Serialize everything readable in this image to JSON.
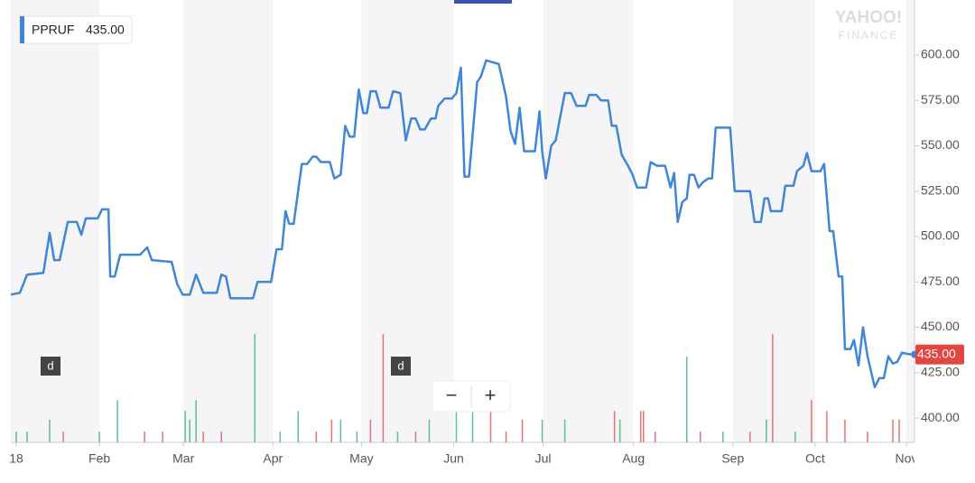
{
  "chart_data": {
    "type": "line",
    "symbol": "PPRUF",
    "last_price": {
      "value": 435,
      "label": "435.00"
    },
    "watermark": [
      "YAHOO!",
      "FINANCE"
    ],
    "buttons": [
      "d",
      "d",
      "−",
      "+"
    ],
    "xlim": [
      0,
      200
    ],
    "xticks": [
      {
        "value": 1.2,
        "label": "18"
      },
      {
        "value": 19.6,
        "label": "Feb"
      },
      {
        "value": 38.2,
        "label": "Mar"
      },
      {
        "value": 58,
        "label": "Apr"
      },
      {
        "value": 77.6,
        "label": "May"
      },
      {
        "value": 98,
        "label": "Jun"
      },
      {
        "value": 117.8,
        "label": "Jul"
      },
      {
        "value": 137.8,
        "label": "Aug"
      },
      {
        "value": 159.8,
        "label": "Sep"
      },
      {
        "value": 178,
        "label": "Oct"
      },
      {
        "value": 198.2,
        "label": "Nov"
      }
    ],
    "ylim": [
      386.6,
      630.3
    ],
    "yticks": [
      {
        "value": 400,
        "label": "400.00"
      },
      {
        "value": 425,
        "label": "425.00"
      },
      {
        "value": 450,
        "label": "450.00"
      },
      {
        "value": 475,
        "label": "475.00"
      },
      {
        "value": 500,
        "label": "500.00"
      },
      {
        "value": 525,
        "label": "525.00"
      },
      {
        "value": 550,
        "label": "550.00"
      },
      {
        "value": 575,
        "label": "575.00"
      },
      {
        "value": 600,
        "label": "600.00"
      }
    ],
    "series": [
      {
        "name": "PPRUF",
        "color": "#3f86d6",
        "x": [
          0,
          2,
          3.6,
          7.2,
          8.6,
          9.6,
          10.8,
          12.6,
          14.6,
          15.6,
          16.6,
          19.2,
          20.2,
          21.6,
          22,
          23,
          24.2,
          28.6,
          30.2,
          31.2,
          35.6,
          36.8,
          38,
          39.6,
          41,
          42.6,
          45.6,
          46.6,
          47.6,
          48.6,
          53.6,
          54.6,
          57.6,
          58.8,
          60,
          60.8,
          61.6,
          62.6,
          64.4,
          65.6,
          66.8,
          67.6,
          68.6,
          70.6,
          71.6,
          73,
          74,
          75,
          76,
          77,
          78,
          78.8,
          79.6,
          80.8,
          81.8,
          83.6,
          84.6,
          86.2,
          87.4,
          88.6,
          89.6,
          90.6,
          91.6,
          93,
          94,
          94.6,
          96,
          97.6,
          98.6,
          99.6,
          100.4,
          101.4,
          103.2,
          104,
          105.2,
          106.6,
          108,
          109.6,
          110.6,
          111.6,
          112.6,
          113.6,
          116,
          117,
          117.6,
          118.4,
          119.6,
          120.6,
          121.6,
          122.6,
          124,
          125.2,
          127.2,
          128,
          129.6,
          130.6,
          132.2,
          133,
          134,
          135.2,
          136.6,
          137.6,
          138.6,
          140.6,
          141.6,
          143,
          144.8,
          146,
          146.8,
          147.6,
          148.6,
          149.6,
          150.2,
          151.2,
          152.2,
          153.2,
          154.4,
          155.2,
          156,
          159.2,
          160.2,
          163.6,
          164.6,
          166,
          166.8,
          167.6,
          168.2,
          170.6,
          171.4,
          173.2,
          174,
          175.4,
          176.2,
          177.2,
          179.2,
          180,
          181.2,
          182,
          183.2,
          184,
          184.6,
          185.8,
          186.6,
          187.6,
          188.6,
          189.6,
          191.2,
          192.2,
          193.2,
          194.2,
          195.2,
          196.2,
          197.2,
          199.2,
          200
        ],
        "values": [
          468,
          469,
          479,
          480,
          502,
          487,
          487,
          508,
          508,
          501,
          510,
          510,
          515,
          515,
          478,
          478,
          490,
          490,
          494,
          487,
          486,
          474,
          468,
          468,
          479,
          469,
          469,
          479,
          478,
          466,
          466,
          475,
          475,
          493,
          493,
          514,
          507,
          507,
          540,
          540,
          544,
          544,
          541,
          541,
          532,
          534,
          561,
          555,
          555,
          581,
          568,
          568,
          580,
          580,
          571,
          571,
          580,
          579,
          553,
          565,
          565,
          559,
          559,
          565,
          565,
          572,
          576,
          576,
          579,
          593,
          533,
          533,
          585,
          588,
          597,
          596,
          595,
          577,
          558,
          551,
          571,
          547,
          547,
          569,
          547,
          532,
          550,
          553,
          566,
          579,
          579,
          572,
          572,
          578,
          578,
          575,
          575,
          561,
          561,
          545,
          539,
          534,
          527,
          527,
          541,
          539,
          539,
          527,
          535,
          508,
          519,
          521,
          534,
          534,
          527,
          530,
          532,
          532,
          560,
          560,
          525,
          525,
          508,
          508,
          521,
          521,
          514,
          514,
          528,
          528,
          536,
          539,
          546,
          536,
          536,
          540,
          503,
          503,
          478,
          478,
          438,
          438,
          443,
          429,
          450,
          434,
          417,
          422,
          422,
          434,
          430,
          431,
          436,
          435,
          435
        ]
      }
    ],
    "volume": {
      "lim": [
        0,
        100
      ],
      "x": [
        1.2,
        3.6,
        8.6,
        11.6,
        19.6,
        23.6,
        29.6,
        33.6,
        38.6,
        39.6,
        41,
        42.6,
        46.6,
        54,
        59.6,
        63.6,
        67.6,
        71,
        73,
        76.6,
        79.6,
        82.4,
        85.6,
        89.6,
        92.6,
        98.6,
        102.2,
        106.2,
        109.6,
        113.2,
        117.6,
        122.6,
        133.6,
        134.8,
        139.4,
        140,
        142.6,
        149.6,
        152.6,
        157.6,
        163.6,
        167.2,
        168.6,
        173.6,
        177.2,
        180.6,
        184.6,
        189.6,
        195.2,
        196.6
      ],
      "values": [
        10,
        10,
        21,
        10,
        10,
        39,
        10,
        10,
        29,
        21,
        39,
        10,
        10,
        100,
        10,
        29,
        10,
        21,
        21,
        10,
        21,
        100,
        10,
        10,
        21,
        29,
        50,
        38,
        10,
        21,
        21,
        21,
        29,
        21,
        29,
        29,
        10,
        79,
        10,
        10,
        10,
        21,
        100,
        10,
        39,
        29,
        21,
        10,
        21,
        21
      ],
      "colors": [
        "#5fbf8f",
        "#5fbf8f",
        "#5fbf8f",
        "#e57373",
        "#5fbf8f",
        "#5fbf8f",
        "#e57373",
        "#e57373",
        "#5fbf8f",
        "#5fbf8f",
        "#5fbf8f",
        "#e57373",
        "#e57373",
        "#5fbf8f",
        "#5fbf8f",
        "#5fbf8f",
        "#e57373",
        "#e57373",
        "#5fbf8f",
        "#5fbf8f",
        "#e57373",
        "#e57373",
        "#5fbf8f",
        "#e57373",
        "#5fbf8f",
        "#5fbf8f",
        "#5fbf8f",
        "#e57373",
        "#e57373",
        "#e57373",
        "#5fbf8f",
        "#5fbf8f",
        "#e57373",
        "#5fbf8f",
        "#e57373",
        "#e57373",
        "#e57373",
        "#5fbf8f",
        "#e57373",
        "#5fbf8f",
        "#e57373",
        "#5fbf8f",
        "#e57373",
        "#5fbf8f",
        "#e57373",
        "#e57373",
        "#e57373",
        "#e57373",
        "#e57373",
        "#e57373"
      ]
    }
  }
}
